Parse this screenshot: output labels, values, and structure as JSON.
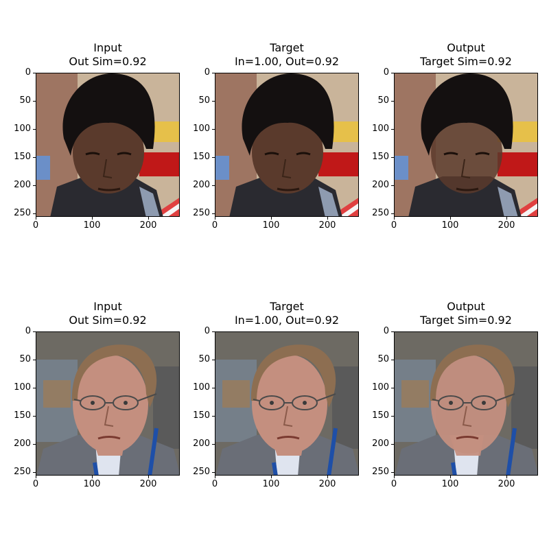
{
  "panels": [
    {
      "title": "Input\nOut Sim=0.92",
      "image": "face-asian-man-input"
    },
    {
      "title": "Target\nIn=1.00, Out=0.92",
      "image": "face-asian-man-target"
    },
    {
      "title": "Output\nTarget Sim=0.92",
      "image": "face-asian-man-output"
    },
    {
      "title": "Input\nOut Sim=0.92",
      "image": "face-older-man-input"
    },
    {
      "title": "Target\nIn=1.00, Out=0.92",
      "image": "face-older-man-target"
    },
    {
      "title": "Output\nTarget Sim=0.92",
      "image": "face-older-man-output"
    }
  ],
  "axes": {
    "yticks": [
      "0",
      "50",
      "100",
      "150",
      "200",
      "250"
    ],
    "xticks": [
      "0",
      "100",
      "200"
    ]
  },
  "colors": {
    "row1_bg": "#c9b49a",
    "row1_hair": "#141010",
    "row1_face": "#5a3a2c",
    "row1_red": "#c01818",
    "row1_yellow": "#e6c04a",
    "row2_bg": "#6d6a63",
    "row2_face": "#c48f7f",
    "row2_hair": "#8d6e51",
    "row2_suit": "#6a6e77",
    "row2_lanyard": "#1e4fa8"
  }
}
